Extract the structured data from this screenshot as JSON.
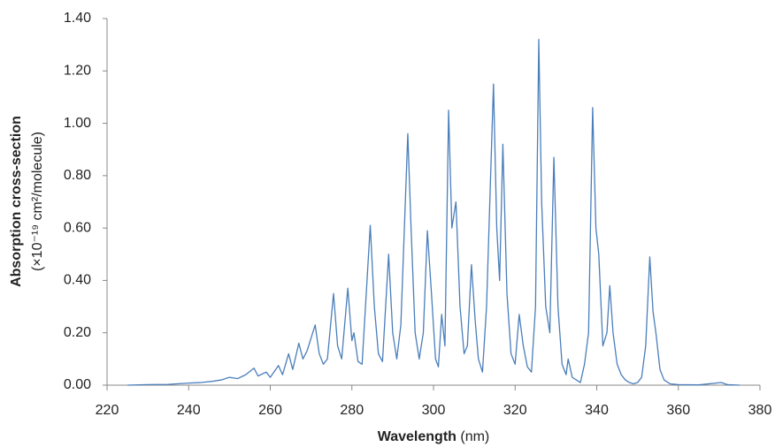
{
  "chart_data": {
    "type": "line",
    "ylabel": "Absorption cross-section",
    "ylabel_units": "(×10⁻¹⁹ cm²/molecule)",
    "xlabel": "Wavelength",
    "xlabel_units": "(nm)",
    "color": "#4a7ebb",
    "x": [
      225,
      230,
      235,
      240,
      243,
      246,
      248,
      250,
      252,
      254,
      256,
      257,
      259,
      260,
      262,
      263,
      264.5,
      265.5,
      267,
      268,
      269,
      271,
      272,
      273,
      274,
      275.5,
      276.5,
      277.5,
      279,
      280,
      280.5,
      281.5,
      282.5,
      284.5,
      285.5,
      286.5,
      287.5,
      289,
      290,
      291,
      292,
      293.7,
      294.5,
      295.5,
      296.5,
      297.5,
      298.5,
      299.5,
      300.5,
      301.2,
      302,
      302.8,
      303.7,
      304.5,
      305.5,
      306.5,
      307.5,
      308.3,
      309.3,
      310.2,
      311,
      312,
      313,
      314.7,
      315.5,
      316.2,
      317,
      318,
      319,
      320,
      321,
      322,
      323,
      324,
      325,
      325.8,
      326.5,
      327.5,
      328.5,
      329.5,
      330.5,
      331.5,
      332.5,
      333,
      334,
      335,
      336,
      337,
      338,
      339,
      339.8,
      340.5,
      341.5,
      342.5,
      343.2,
      344,
      345,
      346,
      347,
      348,
      349,
      350,
      351,
      352,
      353,
      353.8,
      354.5,
      355.5,
      356.5,
      358,
      360,
      365,
      370.5,
      372,
      375
    ],
    "values": [
      0,
      0.002,
      0.003,
      0.008,
      0.01,
      0.015,
      0.02,
      0.03,
      0.025,
      0.04,
      0.065,
      0.035,
      0.05,
      0.03,
      0.075,
      0.04,
      0.12,
      0.06,
      0.16,
      0.1,
      0.13,
      0.23,
      0.12,
      0.08,
      0.1,
      0.35,
      0.15,
      0.1,
      0.37,
      0.17,
      0.2,
      0.09,
      0.08,
      0.61,
      0.3,
      0.12,
      0.09,
      0.5,
      0.2,
      0.1,
      0.23,
      0.96,
      0.6,
      0.2,
      0.1,
      0.2,
      0.59,
      0.35,
      0.1,
      0.07,
      0.27,
      0.15,
      1.05,
      0.6,
      0.7,
      0.3,
      0.12,
      0.15,
      0.46,
      0.25,
      0.1,
      0.05,
      0.3,
      1.15,
      0.6,
      0.4,
      0.92,
      0.35,
      0.12,
      0.08,
      0.27,
      0.15,
      0.07,
      0.05,
      0.3,
      1.32,
      0.7,
      0.3,
      0.2,
      0.87,
      0.3,
      0.08,
      0.04,
      0.1,
      0.03,
      0.02,
      0.01,
      0.08,
      0.2,
      1.06,
      0.6,
      0.5,
      0.15,
      0.2,
      0.38,
      0.2,
      0.08,
      0.04,
      0.02,
      0.01,
      0.005,
      0.01,
      0.03,
      0.15,
      0.49,
      0.28,
      0.2,
      0.06,
      0.02,
      0.005,
      0.002,
      0.001,
      0.01,
      0.002,
      0
    ],
    "xlim": [
      220,
      380
    ],
    "xticks": [
      220,
      240,
      260,
      280,
      300,
      320,
      340,
      360,
      380
    ],
    "ylim": [
      0,
      1.4
    ],
    "yticks": [
      {
        "value": 0,
        "label": "0.00"
      },
      {
        "value": 0.2,
        "label": "0.20"
      },
      {
        "value": 0.4,
        "label": "0.40"
      },
      {
        "value": 0.6,
        "label": "0.60"
      },
      {
        "value": 0.8,
        "label": "0.80"
      },
      {
        "value": 1.0,
        "label": "1.00"
      },
      {
        "value": 1.2,
        "label": "1.20"
      },
      {
        "value": 1.4,
        "label": "1.40"
      }
    ],
    "grid": false
  }
}
